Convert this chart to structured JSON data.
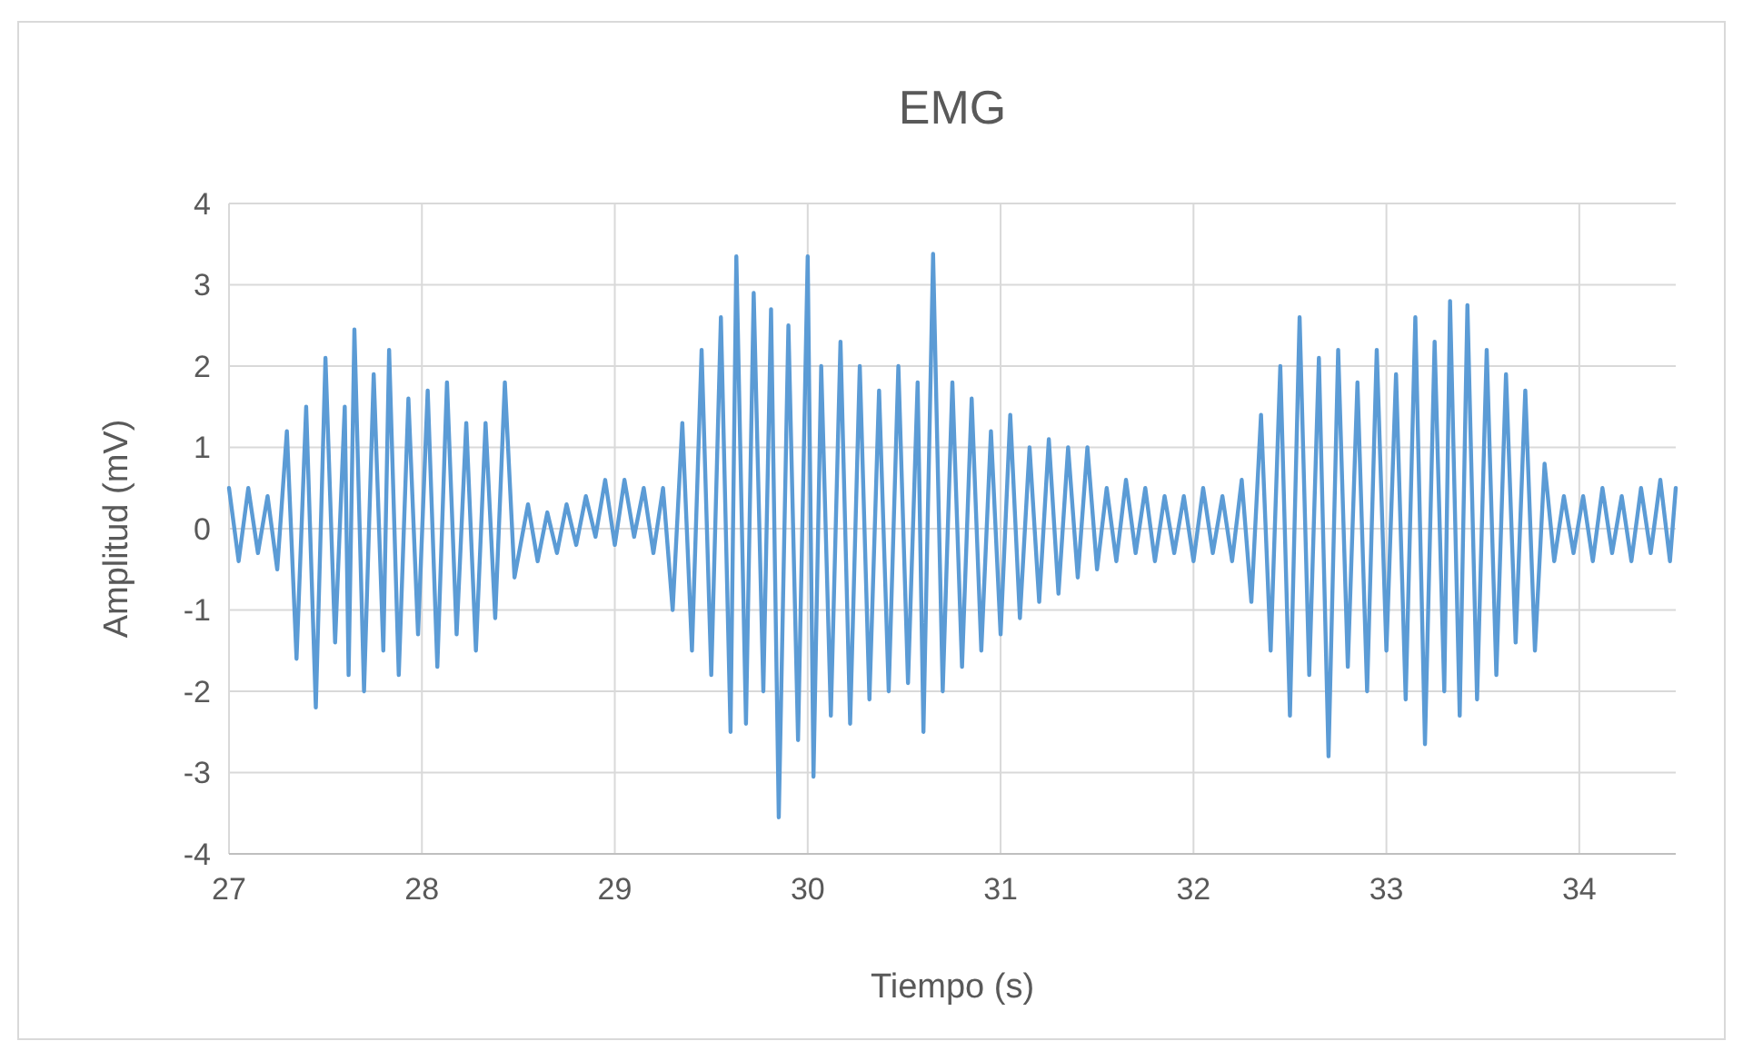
{
  "chart_data": {
    "type": "line",
    "title": "EMG",
    "xlabel": "Tiempo (s)",
    "ylabel": "Amplitud (mV)",
    "xlim": [
      27,
      34.5
    ],
    "xticks": [
      27,
      28,
      29,
      30,
      31,
      32,
      33,
      34
    ],
    "ylim": [
      -4,
      4
    ],
    "yticks": [
      -4,
      -3,
      -2,
      -1,
      0,
      1,
      2,
      3,
      4
    ],
    "grid": true,
    "marker": "none",
    "line_style": "solid",
    "series": [
      {
        "color": "#5b9bd5",
        "x": [
          27.0,
          27.05,
          27.1,
          27.15,
          27.2,
          27.25,
          27.3,
          27.35,
          27.4,
          27.45,
          27.5,
          27.55,
          27.6,
          27.62,
          27.65,
          27.7,
          27.75,
          27.8,
          27.83,
          27.88,
          27.93,
          27.98,
          28.03,
          28.08,
          28.13,
          28.18,
          28.23,
          28.28,
          28.33,
          28.38,
          28.43,
          28.48,
          28.55,
          28.6,
          28.65,
          28.7,
          28.75,
          28.8,
          28.85,
          28.9,
          28.95,
          29.0,
          29.05,
          29.1,
          29.15,
          29.2,
          29.25,
          29.3,
          29.35,
          29.4,
          29.45,
          29.5,
          29.55,
          29.6,
          29.63,
          29.68,
          29.72,
          29.77,
          29.81,
          29.85,
          29.9,
          29.95,
          30.0,
          30.03,
          30.07,
          30.12,
          30.17,
          30.22,
          30.27,
          30.32,
          30.37,
          30.42,
          30.47,
          30.52,
          30.57,
          30.6,
          30.65,
          30.7,
          30.75,
          30.8,
          30.85,
          30.9,
          30.95,
          31.0,
          31.05,
          31.1,
          31.15,
          31.2,
          31.25,
          31.3,
          31.35,
          31.4,
          31.45,
          31.5,
          31.55,
          31.6,
          31.65,
          31.7,
          31.75,
          31.8,
          31.85,
          31.9,
          31.95,
          32.0,
          32.05,
          32.1,
          32.15,
          32.2,
          32.25,
          32.3,
          32.35,
          32.4,
          32.45,
          32.5,
          32.55,
          32.6,
          32.65,
          32.7,
          32.75,
          32.8,
          32.85,
          32.9,
          32.95,
          33.0,
          33.05,
          33.1,
          33.15,
          33.2,
          33.25,
          33.3,
          33.33,
          33.38,
          33.42,
          33.47,
          33.52,
          33.57,
          33.62,
          33.67,
          33.72,
          33.77,
          33.82,
          33.87,
          33.92,
          33.97,
          34.02,
          34.07,
          34.12,
          34.17,
          34.22,
          34.27,
          34.32,
          34.37,
          34.42,
          34.47,
          34.5
        ],
        "values": [
          0.5,
          -0.4,
          0.5,
          -0.3,
          0.4,
          -0.5,
          1.2,
          -1.6,
          1.5,
          -2.2,
          2.1,
          -1.4,
          1.5,
          -1.8,
          2.45,
          -2.0,
          1.9,
          -1.5,
          2.2,
          -1.8,
          1.6,
          -1.3,
          1.7,
          -1.7,
          1.8,
          -1.3,
          1.3,
          -1.5,
          1.3,
          -1.1,
          1.8,
          -0.6,
          0.3,
          -0.4,
          0.2,
          -0.3,
          0.3,
          -0.2,
          0.4,
          -0.1,
          0.6,
          -0.2,
          0.6,
          -0.1,
          0.5,
          -0.3,
          0.5,
          -1.0,
          1.3,
          -1.5,
          2.2,
          -1.8,
          2.6,
          -2.5,
          3.35,
          -2.4,
          2.9,
          -2.0,
          2.7,
          -3.55,
          2.5,
          -2.6,
          3.35,
          -3.05,
          2.0,
          -2.3,
          2.3,
          -2.4,
          2.0,
          -2.1,
          1.7,
          -2.0,
          2.0,
          -1.9,
          1.8,
          -2.5,
          3.38,
          -2.0,
          1.8,
          -1.7,
          1.6,
          -1.5,
          1.2,
          -1.3,
          1.4,
          -1.1,
          1.0,
          -0.9,
          1.1,
          -0.8,
          1.0,
          -0.6,
          1.0,
          -0.5,
          0.5,
          -0.4,
          0.6,
          -0.3,
          0.5,
          -0.4,
          0.4,
          -0.3,
          0.4,
          -0.4,
          0.5,
          -0.3,
          0.4,
          -0.4,
          0.6,
          -0.9,
          1.4,
          -1.5,
          2.0,
          -2.3,
          2.6,
          -1.8,
          2.1,
          -2.8,
          2.2,
          -1.7,
          1.8,
          -2.0,
          2.2,
          -1.5,
          1.9,
          -2.1,
          2.6,
          -2.65,
          2.3,
          -2.0,
          2.8,
          -2.3,
          2.75,
          -2.1,
          2.2,
          -1.8,
          1.9,
          -1.4,
          1.7,
          -1.5,
          0.8,
          -0.4,
          0.4,
          -0.3,
          0.4,
          -0.4,
          0.5,
          -0.3,
          0.4,
          -0.4,
          0.5,
          -0.3,
          0.6,
          -0.4,
          0.5
        ]
      }
    ]
  }
}
